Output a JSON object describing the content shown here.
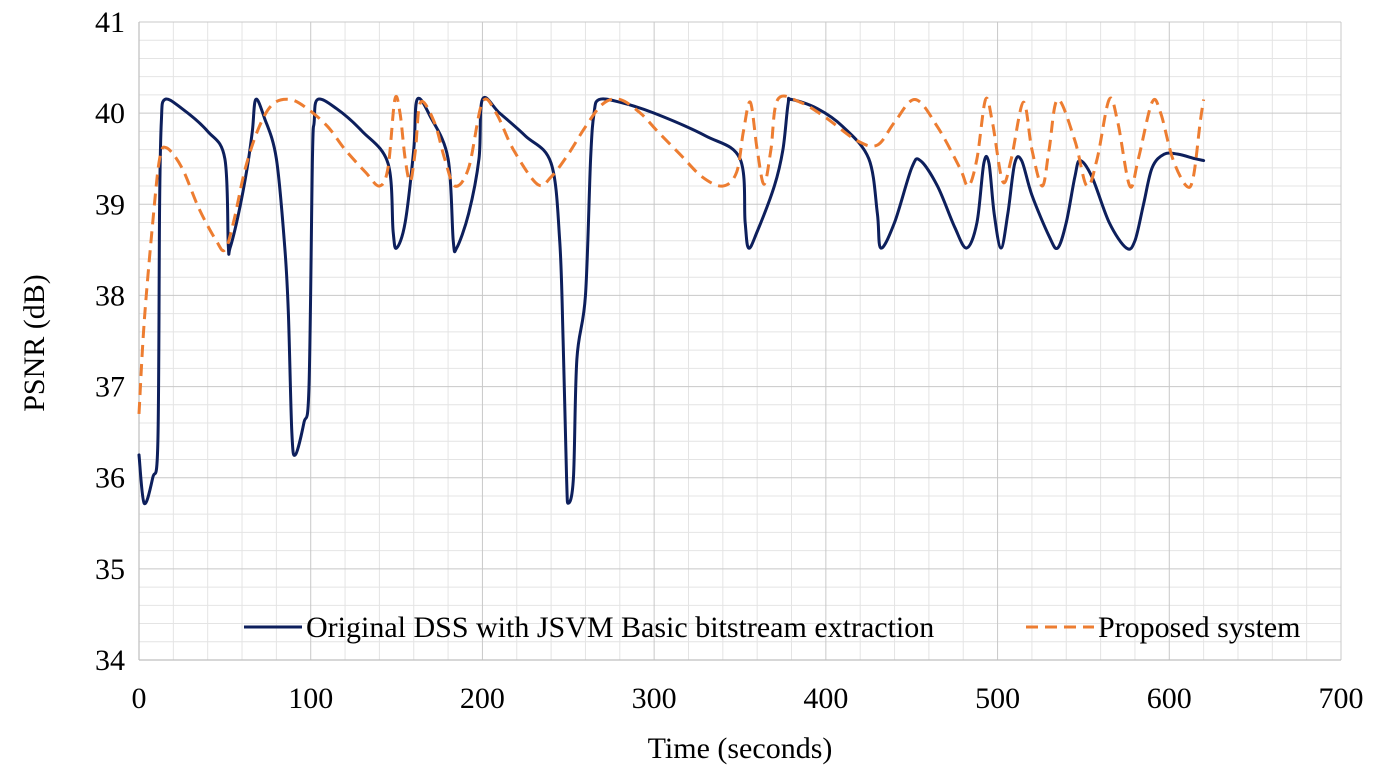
{
  "chart_data": {
    "type": "line",
    "title": "",
    "xlabel": "Time (seconds)",
    "ylabel": "PSNR (dB)",
    "xlim": [
      0,
      700
    ],
    "ylim": [
      34,
      41
    ],
    "x_ticks": [
      0,
      100,
      200,
      300,
      400,
      500,
      600,
      700
    ],
    "y_ticks": [
      34,
      35,
      36,
      37,
      38,
      39,
      40,
      41
    ],
    "grid": true,
    "legend_position": "bottom-right",
    "series": [
      {
        "name": "Original DSS with JSVM Basic bitstream extraction",
        "color": "#0d1f5c",
        "style": "solid",
        "points": [
          [
            0,
            36.25
          ],
          [
            3,
            35.72
          ],
          [
            8,
            36.0
          ],
          [
            11,
            36.4
          ],
          [
            12,
            39.0
          ],
          [
            13,
            39.9
          ],
          [
            15,
            40.15
          ],
          [
            25,
            40.05
          ],
          [
            40,
            39.8
          ],
          [
            50,
            39.5
          ],
          [
            52,
            38.55
          ],
          [
            53,
            38.52
          ],
          [
            58,
            38.9
          ],
          [
            63,
            39.4
          ],
          [
            66,
            39.8
          ],
          [
            68,
            40.15
          ],
          [
            73,
            39.95
          ],
          [
            80,
            39.5
          ],
          [
            85,
            38.5
          ],
          [
            87,
            37.8
          ],
          [
            89,
            36.5
          ],
          [
            91,
            36.25
          ],
          [
            96,
            36.6
          ],
          [
            99,
            37.0
          ],
          [
            101,
            39.5
          ],
          [
            102,
            39.9
          ],
          [
            104,
            40.15
          ],
          [
            115,
            40.05
          ],
          [
            130,
            39.8
          ],
          [
            145,
            39.45
          ],
          [
            148,
            38.7
          ],
          [
            150,
            38.52
          ],
          [
            155,
            38.8
          ],
          [
            160,
            39.6
          ],
          [
            162,
            40.15
          ],
          [
            170,
            39.95
          ],
          [
            180,
            39.5
          ],
          [
            183,
            38.6
          ],
          [
            185,
            38.52
          ],
          [
            192,
            38.9
          ],
          [
            198,
            39.5
          ],
          [
            200,
            40.15
          ],
          [
            210,
            40.0
          ],
          [
            225,
            39.75
          ],
          [
            240,
            39.45
          ],
          [
            245,
            38.6
          ],
          [
            247,
            37.5
          ],
          [
            249,
            36.0
          ],
          [
            250,
            35.72
          ],
          [
            253,
            36.0
          ],
          [
            255,
            37.3
          ],
          [
            260,
            38.0
          ],
          [
            263,
            39.5
          ],
          [
            265,
            40.0
          ],
          [
            268,
            40.15
          ],
          [
            280,
            40.12
          ],
          [
            300,
            40.0
          ],
          [
            330,
            39.75
          ],
          [
            350,
            39.5
          ],
          [
            353,
            38.8
          ],
          [
            355,
            38.52
          ],
          [
            360,
            38.7
          ],
          [
            370,
            39.2
          ],
          [
            375,
            39.6
          ],
          [
            378,
            40.1
          ],
          [
            380,
            40.15
          ],
          [
            395,
            40.05
          ],
          [
            410,
            39.85
          ],
          [
            425,
            39.5
          ],
          [
            430,
            38.9
          ],
          [
            432,
            38.52
          ],
          [
            440,
            38.8
          ],
          [
            450,
            39.4
          ],
          [
            455,
            39.48
          ],
          [
            465,
            39.2
          ],
          [
            475,
            38.75
          ],
          [
            482,
            38.52
          ],
          [
            488,
            38.8
          ],
          [
            492,
            39.45
          ],
          [
            495,
            39.45
          ],
          [
            498,
            38.9
          ],
          [
            502,
            38.52
          ],
          [
            506,
            38.9
          ],
          [
            510,
            39.45
          ],
          [
            514,
            39.48
          ],
          [
            520,
            39.1
          ],
          [
            530,
            38.65
          ],
          [
            535,
            38.52
          ],
          [
            540,
            38.8
          ],
          [
            545,
            39.3
          ],
          [
            548,
            39.48
          ],
          [
            555,
            39.3
          ],
          [
            565,
            38.8
          ],
          [
            575,
            38.52
          ],
          [
            580,
            38.6
          ],
          [
            585,
            39.0
          ],
          [
            590,
            39.4
          ],
          [
            597,
            39.55
          ],
          [
            605,
            39.55
          ],
          [
            615,
            39.5
          ],
          [
            620,
            39.48
          ]
        ]
      },
      {
        "name": "Proposed system",
        "color": "#ed7d31",
        "style": "dashed",
        "points": [
          [
            0,
            36.7
          ],
          [
            3,
            37.7
          ],
          [
            8,
            38.8
          ],
          [
            12,
            39.5
          ],
          [
            16,
            39.62
          ],
          [
            25,
            39.4
          ],
          [
            35,
            38.95
          ],
          [
            45,
            38.6
          ],
          [
            50,
            38.5
          ],
          [
            55,
            38.8
          ],
          [
            62,
            39.4
          ],
          [
            70,
            39.85
          ],
          [
            78,
            40.1
          ],
          [
            88,
            40.15
          ],
          [
            98,
            40.05
          ],
          [
            110,
            39.85
          ],
          [
            120,
            39.6
          ],
          [
            132,
            39.35
          ],
          [
            140,
            39.2
          ],
          [
            145,
            39.4
          ],
          [
            149,
            40.15
          ],
          [
            152,
            40.0
          ],
          [
            155,
            39.5
          ],
          [
            158,
            39.25
          ],
          [
            161,
            39.6
          ],
          [
            164,
            40.12
          ],
          [
            172,
            39.9
          ],
          [
            178,
            39.5
          ],
          [
            184,
            39.2
          ],
          [
            192,
            39.4
          ],
          [
            200,
            40.12
          ],
          [
            208,
            40.0
          ],
          [
            218,
            39.6
          ],
          [
            232,
            39.22
          ],
          [
            240,
            39.3
          ],
          [
            250,
            39.55
          ],
          [
            260,
            39.85
          ],
          [
            270,
            40.1
          ],
          [
            280,
            40.15
          ],
          [
            292,
            40.0
          ],
          [
            302,
            39.8
          ],
          [
            315,
            39.55
          ],
          [
            328,
            39.3
          ],
          [
            340,
            39.2
          ],
          [
            348,
            39.35
          ],
          [
            352,
            39.8
          ],
          [
            356,
            40.12
          ],
          [
            360,
            39.6
          ],
          [
            364,
            39.22
          ],
          [
            368,
            39.6
          ],
          [
            372,
            40.15
          ],
          [
            385,
            40.12
          ],
          [
            400,
            39.95
          ],
          [
            418,
            39.7
          ],
          [
            430,
            39.65
          ],
          [
            440,
            39.9
          ],
          [
            452,
            40.15
          ],
          [
            465,
            39.85
          ],
          [
            478,
            39.4
          ],
          [
            483,
            39.2
          ],
          [
            488,
            39.5
          ],
          [
            493,
            40.15
          ],
          [
            497,
            39.9
          ],
          [
            503,
            39.25
          ],
          [
            508,
            39.5
          ],
          [
            515,
            40.12
          ],
          [
            520,
            39.6
          ],
          [
            526,
            39.2
          ],
          [
            530,
            39.6
          ],
          [
            535,
            40.15
          ],
          [
            545,
            39.7
          ],
          [
            552,
            39.2
          ],
          [
            558,
            39.5
          ],
          [
            565,
            40.15
          ],
          [
            570,
            39.9
          ],
          [
            577,
            39.2
          ],
          [
            582,
            39.5
          ],
          [
            590,
            40.12
          ],
          [
            595,
            40.0
          ],
          [
            602,
            39.5
          ],
          [
            610,
            39.2
          ],
          [
            614,
            39.3
          ],
          [
            618,
            39.9
          ],
          [
            620,
            40.15
          ]
        ]
      }
    ]
  }
}
